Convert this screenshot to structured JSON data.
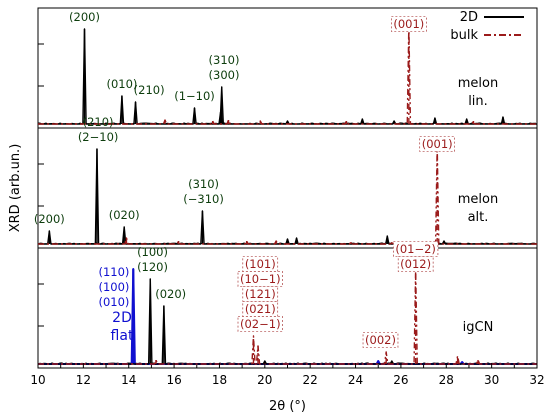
{
  "chart_data": {
    "type": "line",
    "xlabel": "2θ (°)",
    "ylabel": "XRD (arb.un.)",
    "xlim": [
      10,
      32
    ],
    "xticks": [
      10,
      12,
      14,
      16,
      18,
      20,
      22,
      24,
      26,
      28,
      30,
      32
    ],
    "grid": false,
    "legend": {
      "position": "top-right",
      "entries": [
        {
          "label": "2D",
          "color": "#000000",
          "style": "solid"
        },
        {
          "label": "bulk",
          "color": "#9b1b1b",
          "style": "dash-dot"
        }
      ]
    },
    "colors": {
      "2D": "#000000",
      "bulk": "#9b1b1b",
      "2D_flat": "#1010d0",
      "green_label": "#0d3d0d"
    },
    "panels": [
      {
        "name": "melon lin.",
        "label_lines": [
          "melon",
          "lin."
        ],
        "series": [
          {
            "name": "2D",
            "peaks": [
              {
                "x": 12.05,
                "y": 0.95
              },
              {
                "x": 13.7,
                "y": 0.28
              },
              {
                "x": 14.3,
                "y": 0.22
              },
              {
                "x": 16.9,
                "y": 0.16
              },
              {
                "x": 18.1,
                "y": 0.37
              },
              {
                "x": 18.05,
                "y": 0.12
              },
              {
                "x": 21.0,
                "y": 0.03
              },
              {
                "x": 24.3,
                "y": 0.05
              },
              {
                "x": 25.7,
                "y": 0.03
              },
              {
                "x": 27.5,
                "y": 0.06
              },
              {
                "x": 28.9,
                "y": 0.05
              },
              {
                "x": 30.5,
                "y": 0.07
              }
            ]
          },
          {
            "name": "bulk",
            "peaks": [
              {
                "x": 26.35,
                "y": 1.0
              },
              {
                "x": 15.6,
                "y": 0.04
              },
              {
                "x": 17.7,
                "y": 0.03
              },
              {
                "x": 18.4,
                "y": 0.04
              },
              {
                "x": 19.8,
                "y": 0.03
              },
              {
                "x": 23.6,
                "y": 0.03
              },
              {
                "x": 29.2,
                "y": 0.03
              }
            ]
          }
        ],
        "peak_labels": [
          {
            "x": 12.05,
            "lines": [
              "(200)"
            ],
            "color": "green"
          },
          {
            "x": 13.7,
            "lines": [
              "(010)"
            ],
            "color": "green"
          },
          {
            "x": 14.9,
            "lines": [
              "(210)"
            ],
            "color": "green"
          },
          {
            "x": 16.9,
            "lines": [
              "(1−10)"
            ],
            "color": "green"
          },
          {
            "x": 18.2,
            "lines": [
              "(310)",
              "(300)"
            ],
            "color": "green"
          },
          {
            "x": 26.35,
            "lines": [
              "(001)"
            ],
            "color": "bulk"
          }
        ]
      },
      {
        "name": "melon alt.",
        "label_lines": [
          "melon",
          "alt."
        ],
        "series": [
          {
            "name": "2D",
            "peaks": [
              {
                "x": 10.5,
                "y": 0.13
              },
              {
                "x": 12.6,
                "y": 0.95
              },
              {
                "x": 13.8,
                "y": 0.17
              },
              {
                "x": 17.25,
                "y": 0.33
              },
              {
                "x": 21.0,
                "y": 0.05
              },
              {
                "x": 21.4,
                "y": 0.06
              },
              {
                "x": 25.4,
                "y": 0.08
              },
              {
                "x": 27.9,
                "y": 0.03
              }
            ]
          },
          {
            "name": "bulk",
            "peaks": [
              {
                "x": 27.6,
                "y": 1.0
              },
              {
                "x": 13.9,
                "y": 0.06
              },
              {
                "x": 16.2,
                "y": 0.03
              },
              {
                "x": 19.2,
                "y": 0.03
              },
              {
                "x": 20.5,
                "y": 0.03
              },
              {
                "x": 23.8,
                "y": 0.02
              },
              {
                "x": 25.6,
                "y": 0.02
              }
            ]
          }
        ],
        "peak_labels": [
          {
            "x": 10.5,
            "lines": [
              "(200)"
            ],
            "color": "green"
          },
          {
            "x": 12.65,
            "lines": [
              "(210)",
              "(2−10)"
            ],
            "color": "green"
          },
          {
            "x": 13.8,
            "lines": [
              "(020)"
            ],
            "color": "green"
          },
          {
            "x": 17.3,
            "lines": [
              "(310)",
              "(−310)"
            ],
            "color": "green"
          },
          {
            "x": 27.6,
            "lines": [
              "(001)"
            ],
            "color": "bulk"
          }
        ]
      },
      {
        "name": "igCN",
        "label_lines": [
          "igCN"
        ],
        "side_label_lines": [
          "2D",
          "flat"
        ],
        "series": [
          {
            "name": "2D flat",
            "peaks": [
              {
                "x": 14.2,
                "y": 0.95
              },
              {
                "x": 25.0,
                "y": 0.03
              },
              {
                "x": 28.7,
                "y": 0.02
              }
            ]
          },
          {
            "name": "2D",
            "peaks": [
              {
                "x": 14.95,
                "y": 0.85
              },
              {
                "x": 15.55,
                "y": 0.58
              },
              {
                "x": 20.0,
                "y": 0.03
              },
              {
                "x": 25.6,
                "y": 0.03
              }
            ]
          },
          {
            "name": "bulk",
            "peaks": [
              {
                "x": 26.65,
                "y": 0.95
              },
              {
                "x": 19.5,
                "y": 0.28
              },
              {
                "x": 19.7,
                "y": 0.18
              },
              {
                "x": 25.35,
                "y": 0.12
              },
              {
                "x": 28.5,
                "y": 0.08
              },
              {
                "x": 29.4,
                "y": 0.04
              },
              {
                "x": 15.2,
                "y": 0.04
              }
            ]
          }
        ],
        "peak_labels": [
          {
            "x": 13.35,
            "lines": [
              "(110)",
              "(100)",
              "(010)"
            ],
            "color": "flat"
          },
          {
            "x": 15.05,
            "lines": [
              "(100)",
              "(120)"
            ],
            "color": "green"
          },
          {
            "x": 15.85,
            "lines": [
              "(020)"
            ],
            "color": "green"
          },
          {
            "x": 19.8,
            "lines": [
              "(101)",
              "(10−1)",
              "(121)",
              "(021)",
              "(02−1)"
            ],
            "color": "bulk"
          },
          {
            "x": 25.1,
            "lines": [
              "(002)"
            ],
            "color": "bulk"
          },
          {
            "x": 26.65,
            "lines": [
              "(01−2)",
              "(012)"
            ],
            "color": "bulk"
          }
        ]
      }
    ]
  }
}
